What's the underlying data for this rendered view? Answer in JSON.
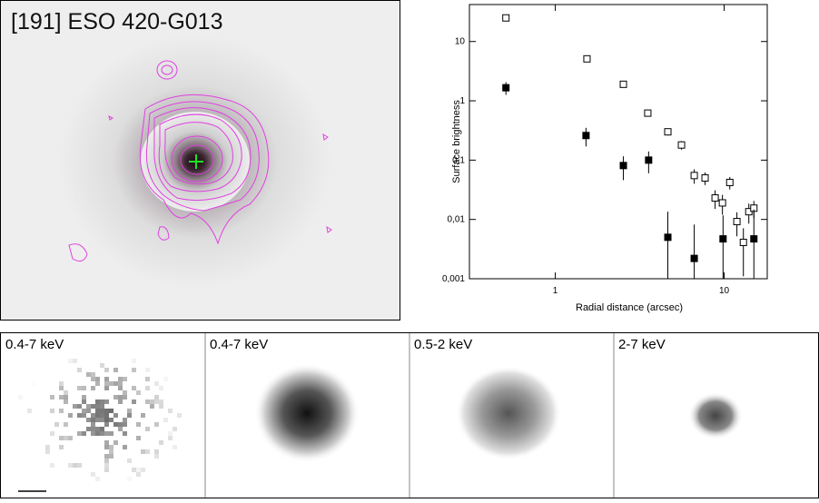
{
  "image_panel": {
    "title": "[191] ESO 420-G013"
  },
  "chart_data": {
    "type": "scatter",
    "xlabel": "Radial distance (arcsec)",
    "ylabel": "Surface brightness",
    "xscale": "log",
    "yscale": "log",
    "xlim": [
      0.31,
      18
    ],
    "ylim": [
      0.001,
      42
    ],
    "xticks": [
      1,
      10
    ],
    "yticks": [
      {
        "value": 0.001,
        "label": "0,001"
      },
      {
        "value": 0.01,
        "label": "0,01"
      },
      {
        "value": 0.1,
        "label": "0,1"
      },
      1,
      10
    ],
    "series": [
      {
        "marker": "open-square",
        "color": "#000000",
        "x": [
          0.51,
          1.54,
          2.53,
          3.53,
          4.64,
          5.59,
          6.65,
          7.71,
          8.84,
          9.77,
          10.8,
          11.9,
          13.0,
          14.0,
          15.0
        ],
        "values": [
          25,
          5.1,
          1.9,
          0.62,
          0.3,
          0.18,
          0.055,
          0.05,
          0.023,
          0.019,
          0.042,
          0.0092,
          0.0041,
          0.0135,
          0.0155
        ],
        "errors": [
          2,
          0.5,
          0.2,
          0.06,
          0.04,
          0.03,
          0.015,
          0.012,
          0.008,
          0.007,
          0.01,
          0.004,
          0.003,
          0.005,
          0.005
        ]
      },
      {
        "marker": "filled-square",
        "color": "#000000",
        "x": [
          0.51,
          1.52,
          2.53,
          3.57,
          4.64,
          6.65,
          9.85,
          15.0
        ],
        "values": [
          1.66,
          0.26,
          0.081,
          0.1,
          0.005,
          0.0022,
          0.0047,
          0.0047
        ],
        "errors": [
          0.4,
          0.09,
          0.035,
          0.04,
          0.0085,
          0.006,
          0.007,
          0.01
        ]
      }
    ]
  },
  "panels": [
    {
      "label": "0.4-7 keV"
    },
    {
      "label": "0.4-7 keV"
    },
    {
      "label": "0.5-2 keV"
    },
    {
      "label": "2-7 keV"
    }
  ]
}
